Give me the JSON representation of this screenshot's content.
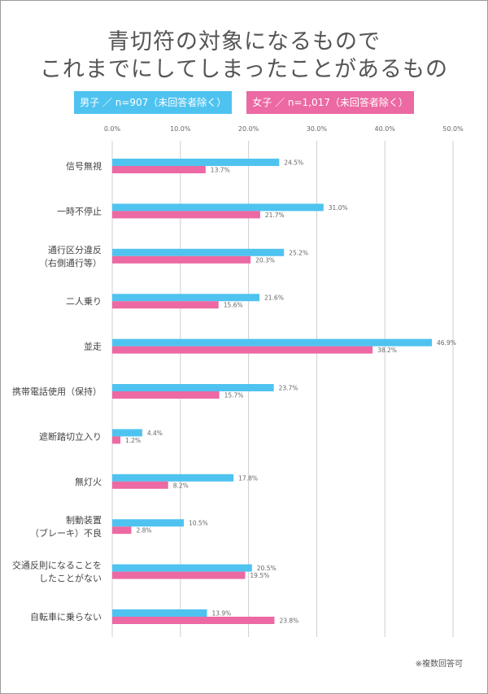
{
  "title_lines": [
    "青切符の対象になるもので",
    "これまでにしてしまったことがあるもの"
  ],
  "footnote": "※複数回答可",
  "chart_data": {
    "type": "bar",
    "orientation": "horizontal",
    "xlim": [
      0,
      50
    ],
    "ticks": [
      "0.0%",
      "10.0%",
      "20.0%",
      "30.0%",
      "40.0%",
      "50.0%"
    ],
    "tick_values": [
      0,
      10,
      20,
      30,
      40,
      50
    ],
    "grid": true,
    "legend_placement": "top",
    "categories": [
      [
        "信号無視"
      ],
      [
        "一時不停止"
      ],
      [
        "通行区分違反",
        "（右側通行等）"
      ],
      [
        "二人乗り"
      ],
      [
        "並走"
      ],
      [
        "携帯電話使用（保持）"
      ],
      [
        "遮断踏切立入り"
      ],
      [
        "無灯火"
      ],
      [
        "制動装置",
        "（ブレーキ）不良"
      ],
      [
        "交通反則になることを",
        "したことがない"
      ],
      [
        "自転車に乗らない"
      ]
    ],
    "series": [
      {
        "name": "男子 ／ n=907（未回答者除く）",
        "color": "#4fc3f0",
        "values": [
          24.5,
          31.0,
          25.2,
          21.6,
          46.9,
          23.7,
          4.4,
          17.8,
          10.5,
          20.5,
          13.9
        ]
      },
      {
        "name": "女子 ／ n=1,017（未回答者除く）",
        "color": "#ec69a3",
        "values": [
          13.7,
          21.7,
          20.3,
          15.6,
          38.2,
          15.7,
          1.2,
          8.2,
          2.8,
          19.5,
          23.8
        ]
      }
    ]
  }
}
